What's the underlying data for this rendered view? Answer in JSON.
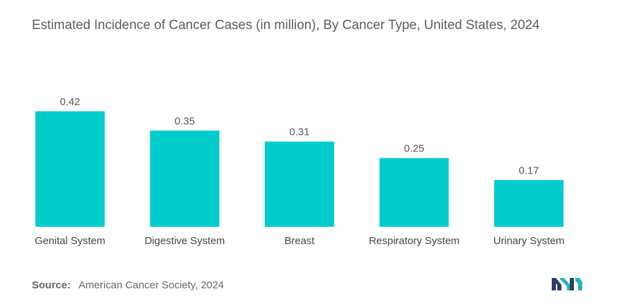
{
  "title": "Estimated Incidence of Cancer Cases (in million), By Cancer Type, United States, 2024",
  "source_label": "Source:",
  "source_text": "American Cancer Society, 2024",
  "logo_icon": "mordor-intelligence-logo",
  "colors": {
    "bar": "#00cccc",
    "logo_dark": "#2b3f6b",
    "logo_teal": "#22b5c0"
  },
  "chart_data": {
    "type": "bar",
    "title": "Estimated Incidence of Cancer Cases (in million), By Cancer Type, United States, 2024",
    "categories": [
      "Genital System",
      "Digestive System",
      "Breast",
      "Respiratory System",
      "Urinary System"
    ],
    "values": [
      0.42,
      0.35,
      0.31,
      0.25,
      0.17
    ],
    "data_labels": [
      "0.42",
      "0.35",
      "0.31",
      "0.25",
      "0.17"
    ],
    "xlabel": "",
    "ylabel": "",
    "ylim": [
      0,
      0.42
    ],
    "grid": false,
    "legend": "none"
  }
}
